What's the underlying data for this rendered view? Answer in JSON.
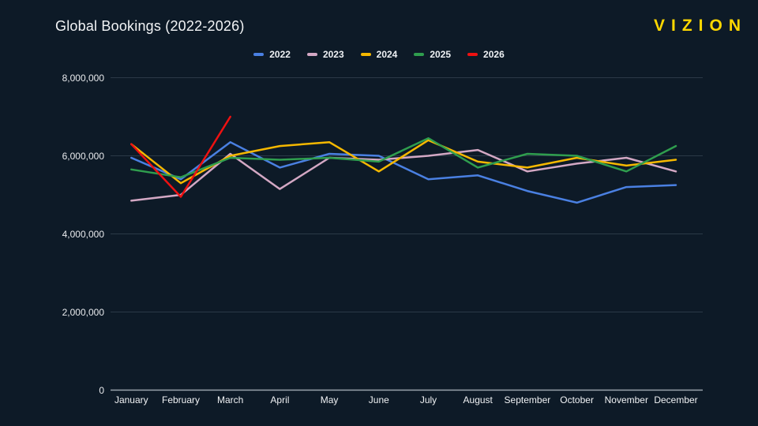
{
  "header": {
    "title": "Global Bookings (2022-2026)",
    "brand": "VIZION",
    "brand_color": "#ffd800"
  },
  "colors": {
    "background": "#0d1a27",
    "gridline": "#2b3947",
    "axis_line": "#9aa4ad",
    "text": "#f2f4f6"
  },
  "chart_data": {
    "type": "line",
    "title": "Global Bookings (2022-2026)",
    "xlabel": "",
    "ylabel": "",
    "ylim": [
      0,
      8000000
    ],
    "ytick_step": 2000000,
    "ytick_labels": [
      "0",
      "2,000,000",
      "4,000,000",
      "6,000,000",
      "8,000,000"
    ],
    "grid": true,
    "legend_position": "top-center",
    "categories": [
      "January",
      "February",
      "March",
      "April",
      "May",
      "June",
      "July",
      "August",
      "September",
      "October",
      "November",
      "December"
    ],
    "series": [
      {
        "name": "2022",
        "color": "#4a80e2",
        "values": [
          5950000,
          5400000,
          6350000,
          5700000,
          6050000,
          6000000,
          5400000,
          5500000,
          5100000,
          4800000,
          5200000,
          5250000
        ]
      },
      {
        "name": "2023",
        "color": "#d3a8c4",
        "values": [
          4850000,
          5000000,
          6050000,
          5150000,
          5950000,
          5900000,
          6000000,
          6150000,
          5600000,
          5800000,
          5950000,
          5600000
        ]
      },
      {
        "name": "2024",
        "color": "#f5b800",
        "values": [
          6300000,
          5300000,
          6000000,
          6250000,
          6350000,
          5600000,
          6400000,
          5850000,
          5700000,
          5950000,
          5750000,
          5900000
        ]
      },
      {
        "name": "2025",
        "color": "#2f9e4e",
        "values": [
          5650000,
          5450000,
          5950000,
          5900000,
          5950000,
          5850000,
          6450000,
          5700000,
          6050000,
          6000000,
          5600000,
          6250000
        ]
      },
      {
        "name": "2026",
        "color": "#ee1111",
        "values": [
          6300000,
          4950000,
          7000000,
          null,
          null,
          null,
          null,
          null,
          null,
          null,
          null,
          null
        ]
      }
    ]
  }
}
